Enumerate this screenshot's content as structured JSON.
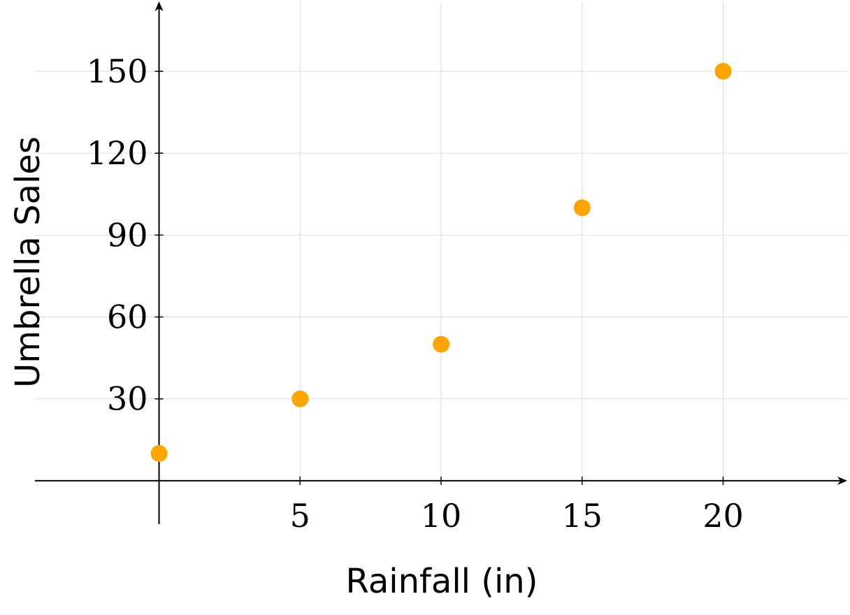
{
  "chart_data": {
    "type": "scatter",
    "title": "",
    "xlabel": "Rainfall (in)",
    "ylabel": "Umbrella Sales",
    "x": [
      0,
      5,
      10,
      15,
      20
    ],
    "y": [
      10,
      30,
      50,
      100,
      150
    ],
    "xticks": [
      5,
      10,
      15,
      20
    ],
    "yticks": [
      30,
      60,
      90,
      120,
      150
    ],
    "xlim": [
      -4.4,
      24.4
    ],
    "ylim": [
      -15.9,
      175.6
    ],
    "grid": true,
    "marker_color": "#FFA500"
  }
}
